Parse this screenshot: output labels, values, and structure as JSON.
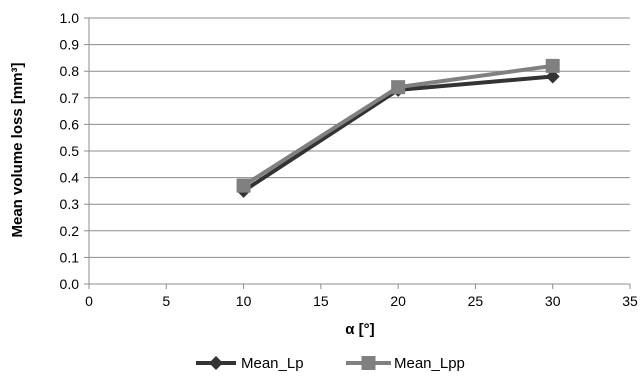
{
  "chart_data": {
    "type": "line",
    "title": "",
    "xlabel": "α [°]",
    "ylabel": "Mean volume loss [mm³]",
    "xlim": [
      0,
      35
    ],
    "ylim": [
      0.0,
      1.0
    ],
    "x_ticks": [
      "0",
      "5",
      "10",
      "15",
      "20",
      "25",
      "30",
      "35"
    ],
    "y_ticks": [
      "0.0",
      "0.1",
      "0.2",
      "0.3",
      "0.4",
      "0.5",
      "0.6",
      "0.7",
      "0.8",
      "0.9",
      "1.0"
    ],
    "grid": "horizontal",
    "legend_position": "bottom",
    "series": [
      {
        "name": "Mean_Lp",
        "marker": "diamond",
        "color": "#333333",
        "points": [
          {
            "x": 10,
            "y": 0.35
          },
          {
            "x": 20,
            "y": 0.73
          },
          {
            "x": 30,
            "y": 0.78
          }
        ]
      },
      {
        "name": "Mean_Lpp",
        "marker": "square",
        "color": "#808080",
        "points": [
          {
            "x": 10,
            "y": 0.37
          },
          {
            "x": 20,
            "y": 0.74
          },
          {
            "x": 30,
            "y": 0.82
          }
        ]
      }
    ]
  }
}
